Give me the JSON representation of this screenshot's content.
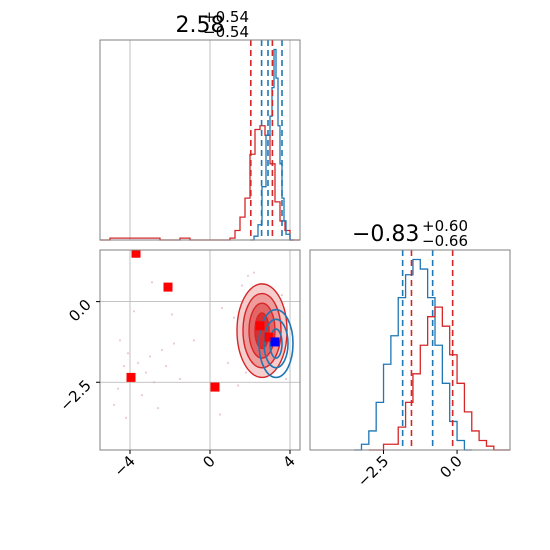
{
  "chart_data": {
    "type": "corner",
    "colors": {
      "red": "#d62728",
      "blue": "#1f77b4",
      "grid": "#b0b0b0",
      "marker_red": "#ff0000",
      "marker_blue": "#0000ff"
    },
    "panels": [
      {
        "id": "hist-x",
        "kind": "histogram",
        "title": {
          "main": "2.58",
          "sup": "+0.54",
          "sub": "−0.54"
        },
        "xlim": [
          -5.5,
          4.5
        ],
        "xgrid": [
          -4,
          0,
          4
        ],
        "ylim": [
          0,
          1.05
        ],
        "series": [
          {
            "name": "",
            "color": "red",
            "edges": [
              -5.5,
              -5.0,
              -4.5,
              -4.0,
              -3.5,
              -3.0,
              -2.5,
              -2.0,
              -1.5,
              -1.0,
              -0.5,
              0.0,
              0.5,
              1.0,
              1.25,
              1.5,
              1.75,
              2.0,
              2.25,
              2.5,
              2.75,
              3.0,
              3.25,
              3.5,
              3.75,
              4.0,
              4.5
            ],
            "values": [
              0,
              0.01,
              0.01,
              0.01,
              0.01,
              0.01,
              0,
              0,
              0.01,
              0,
              0,
              0,
              0,
              0.01,
              0.05,
              0.12,
              0.22,
              0.45,
              0.58,
              0.6,
              0.55,
              0.4,
              0.2,
              0.1,
              0.05,
              0
            ]
          },
          {
            "name": "",
            "color": "blue",
            "edges": [
              2.0,
              2.2,
              2.4,
              2.6,
              2.8,
              3.0,
              3.1,
              3.2,
              3.3,
              3.4,
              3.5,
              3.6,
              3.7,
              3.8,
              4.0,
              4.2
            ],
            "values": [
              0,
              0.02,
              0.08,
              0.28,
              0.55,
              0.65,
              0.8,
              1.0,
              0.85,
              0.6,
              0.4,
              0.22,
              0.1,
              0.03,
              0
            ]
          }
        ],
        "quantile_lines": [
          {
            "x": 2.04,
            "color": "red"
          },
          {
            "x": 2.58,
            "color": "blue"
          },
          {
            "x": 3.12,
            "color": "red"
          },
          {
            "x": 2.9,
            "color": "blue"
          },
          {
            "x": 3.6,
            "color": "blue"
          }
        ]
      },
      {
        "id": "hist-y",
        "kind": "histogram",
        "title": {
          "main": "−0.83",
          "sup": "+0.60",
          "sub": "−0.66"
        },
        "xlim": [
          -5.0,
          1.8
        ],
        "xgrid": [],
        "xticks": [
          {
            "v": -2.5,
            "label": "−2.5"
          },
          {
            "v": 0.0,
            "label": "0.0"
          }
        ],
        "ylim": [
          0,
          1.05
        ],
        "series": [
          {
            "name": "",
            "color": "blue",
            "edges": [
              -3.5,
              -3.25,
              -3.0,
              -2.75,
              -2.5,
              -2.25,
              -2.0,
              -1.75,
              -1.5,
              -1.25,
              -1.0,
              -0.75,
              -0.5,
              -0.25,
              0.0,
              0.25,
              0.5
            ],
            "values": [
              0,
              0.03,
              0.1,
              0.25,
              0.45,
              0.6,
              0.8,
              0.92,
              1.0,
              0.95,
              0.8,
              0.55,
              0.35,
              0.15,
              0.05,
              0
            ]
          },
          {
            "name": "",
            "color": "red",
            "edges": [
              -3.0,
              -2.5,
              -2.0,
              -1.75,
              -1.5,
              -1.25,
              -1.0,
              -0.75,
              -0.5,
              -0.25,
              0.0,
              0.25,
              0.5,
              0.75,
              1.0,
              1.25,
              1.8
            ],
            "values": [
              0,
              0.03,
              0.12,
              0.25,
              0.4,
              0.55,
              0.7,
              0.75,
              0.65,
              0.5,
              0.35,
              0.2,
              0.1,
              0.05,
              0.02,
              0
            ]
          }
        ],
        "quantile_lines": [
          {
            "x": -1.85,
            "color": "blue"
          },
          {
            "x": -0.83,
            "color": "blue"
          },
          {
            "x": -1.55,
            "color": "red"
          },
          {
            "x": -0.15,
            "color": "red"
          }
        ]
      },
      {
        "id": "joint",
        "kind": "scatter-contour",
        "xlim": [
          -5.5,
          4.5
        ],
        "ylim": [
          -4.6,
          1.6
        ],
        "xticks": [
          {
            "v": -4,
            "label": "−4"
          },
          {
            "v": 0,
            "label": "0"
          },
          {
            "v": 4,
            "label": "4"
          }
        ],
        "yticks": [
          {
            "v": 0.0,
            "label": "0.0"
          },
          {
            "v": -2.5,
            "label": "−2.5"
          }
        ],
        "xgrid": [
          -4,
          0,
          4
        ],
        "ygrid": [
          0.0,
          -2.5
        ],
        "red_density": {
          "cx": 2.6,
          "cy": -0.9,
          "levels": [
            {
              "rx": 1.25,
              "ry": 1.45
            },
            {
              "rx": 0.95,
              "ry": 1.15
            },
            {
              "rx": 0.65,
              "ry": 0.85
            },
            {
              "rx": 0.35,
              "ry": 0.55
            }
          ]
        },
        "blue_density": {
          "cx": 3.3,
          "cy": -1.3,
          "levels": [
            {
              "rx": 0.85,
              "ry": 1.05
            },
            {
              "rx": 0.6,
              "ry": 0.75
            },
            {
              "rx": 0.3,
              "ry": 0.45
            }
          ]
        },
        "markers": [
          {
            "x": -3.7,
            "y": 1.5,
            "color": "marker_red"
          },
          {
            "x": -2.1,
            "y": 0.45,
            "color": "marker_red"
          },
          {
            "x": -3.95,
            "y": -2.35,
            "color": "marker_red"
          },
          {
            "x": 0.25,
            "y": -2.65,
            "color": "marker_red"
          },
          {
            "x": 2.5,
            "y": -0.75,
            "color": "marker_red"
          },
          {
            "x": 2.95,
            "y": -1.1,
            "color": "marker_red"
          },
          {
            "x": 3.25,
            "y": -1.25,
            "color": "marker_blue"
          }
        ],
        "faint_points": [
          [
            -4.1,
            -1.6
          ],
          [
            -4.3,
            -2.0
          ],
          [
            -3.6,
            -1.9
          ],
          [
            -3.2,
            -2.2
          ],
          [
            -3.0,
            -1.7
          ],
          [
            -2.8,
            -2.5
          ],
          [
            -2.4,
            -1.5
          ],
          [
            -2.2,
            -2.0
          ],
          [
            -1.8,
            -1.3
          ],
          [
            -4.6,
            -2.7
          ],
          [
            -4.8,
            -3.2
          ],
          [
            -3.4,
            -2.9
          ],
          [
            -2.6,
            -3.3
          ],
          [
            -1.5,
            -2.4
          ],
          [
            -3.8,
            -0.3
          ],
          [
            -2.9,
            0.6
          ],
          [
            -4.2,
            -3.6
          ],
          [
            -1.9,
            -0.4
          ],
          [
            -0.8,
            -1.2
          ],
          [
            0.6,
            -0.2
          ],
          [
            0.9,
            -1.9
          ],
          [
            1.2,
            -0.5
          ],
          [
            1.6,
            0.5
          ],
          [
            1.4,
            -2.6
          ],
          [
            1.9,
            0.8
          ],
          [
            2.2,
            0.9
          ],
          [
            3.6,
            0.2
          ],
          [
            3.9,
            -0.6
          ],
          [
            3.8,
            -2.4
          ],
          [
            1.8,
            -2.2
          ],
          [
            0.5,
            -3.5
          ],
          [
            -4.5,
            -1.2
          ]
        ]
      }
    ]
  }
}
